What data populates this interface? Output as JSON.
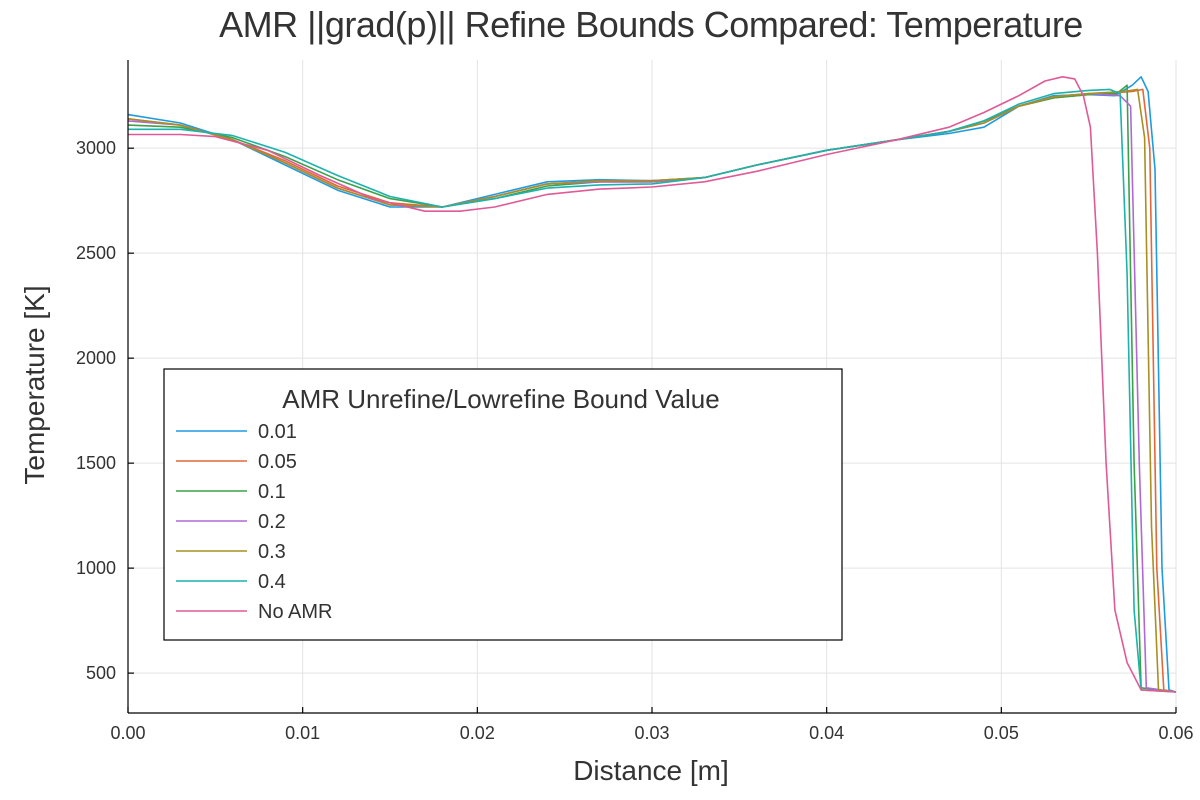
{
  "chart_data": {
    "type": "line",
    "title": "AMR ||grad(p)|| Refine Bounds Compared: Temperature",
    "xlabel": "Distance [m]",
    "ylabel": "Temperature [K]",
    "xlim": [
      0,
      0.06
    ],
    "ylim": [
      310,
      3420
    ],
    "xticks": [
      0.0,
      0.01,
      0.02,
      0.03,
      0.04,
      0.05,
      0.06
    ],
    "xtick_labels": [
      "0.00",
      "0.01",
      "0.02",
      "0.03",
      "0.04",
      "0.05",
      "0.06"
    ],
    "yticks": [
      500,
      1000,
      1500,
      2000,
      2500,
      3000
    ],
    "ytick_labels": [
      "500",
      "1000",
      "1500",
      "2000",
      "2500",
      "3000"
    ],
    "grid": true,
    "legend": {
      "title": "AMR Unrefine/Lowrefine Bound Value",
      "position": "center-left"
    },
    "series": [
      {
        "name": "0.01",
        "color": "#1f9be0",
        "points": [
          [
            0.0,
            3160
          ],
          [
            0.003,
            3120
          ],
          [
            0.006,
            3040
          ],
          [
            0.009,
            2920
          ],
          [
            0.012,
            2800
          ],
          [
            0.015,
            2720
          ],
          [
            0.018,
            2720
          ],
          [
            0.021,
            2780
          ],
          [
            0.024,
            2840
          ],
          [
            0.027,
            2850
          ],
          [
            0.03,
            2845
          ],
          [
            0.033,
            2860
          ],
          [
            0.036,
            2920
          ],
          [
            0.04,
            2990
          ],
          [
            0.044,
            3040
          ],
          [
            0.047,
            3070
          ],
          [
            0.049,
            3100
          ],
          [
            0.051,
            3200
          ],
          [
            0.053,
            3250
          ],
          [
            0.055,
            3255
          ],
          [
            0.0565,
            3250
          ],
          [
            0.0575,
            3300
          ],
          [
            0.058,
            3340
          ],
          [
            0.0584,
            3270
          ],
          [
            0.0588,
            2900
          ],
          [
            0.0592,
            1000
          ],
          [
            0.0596,
            420
          ],
          [
            0.06,
            410
          ]
        ]
      },
      {
        "name": "0.05",
        "color": "#e2683c",
        "points": [
          [
            0.0,
            3140
          ],
          [
            0.003,
            3110
          ],
          [
            0.006,
            3040
          ],
          [
            0.009,
            2940
          ],
          [
            0.012,
            2820
          ],
          [
            0.015,
            2740
          ],
          [
            0.018,
            2720
          ],
          [
            0.021,
            2770
          ],
          [
            0.024,
            2830
          ],
          [
            0.027,
            2840
          ],
          [
            0.03,
            2840
          ],
          [
            0.033,
            2860
          ],
          [
            0.036,
            2920
          ],
          [
            0.04,
            2990
          ],
          [
            0.044,
            3040
          ],
          [
            0.047,
            3080
          ],
          [
            0.049,
            3120
          ],
          [
            0.051,
            3200
          ],
          [
            0.053,
            3240
          ],
          [
            0.055,
            3255
          ],
          [
            0.0575,
            3270
          ],
          [
            0.0581,
            3280
          ],
          [
            0.0585,
            3000
          ],
          [
            0.0589,
            1000
          ],
          [
            0.0593,
            420
          ],
          [
            0.06,
            410
          ]
        ]
      },
      {
        "name": "0.1",
        "color": "#3ca24a",
        "points": [
          [
            0.0,
            3110
          ],
          [
            0.003,
            3100
          ],
          [
            0.006,
            3050
          ],
          [
            0.009,
            2960
          ],
          [
            0.012,
            2850
          ],
          [
            0.015,
            2760
          ],
          [
            0.018,
            2720
          ],
          [
            0.021,
            2760
          ],
          [
            0.024,
            2820
          ],
          [
            0.027,
            2840
          ],
          [
            0.03,
            2840
          ],
          [
            0.033,
            2860
          ],
          [
            0.036,
            2920
          ],
          [
            0.04,
            2990
          ],
          [
            0.044,
            3040
          ],
          [
            0.047,
            3080
          ],
          [
            0.049,
            3130
          ],
          [
            0.051,
            3200
          ],
          [
            0.053,
            3240
          ],
          [
            0.055,
            3255
          ],
          [
            0.0566,
            3260
          ],
          [
            0.0572,
            3300
          ],
          [
            0.0576,
            1500
          ],
          [
            0.058,
            430
          ],
          [
            0.06,
            410
          ]
        ]
      },
      {
        "name": "0.2",
        "color": "#b069d4",
        "points": [
          [
            0.0,
            3130
          ],
          [
            0.003,
            3110
          ],
          [
            0.006,
            3040
          ],
          [
            0.009,
            2930
          ],
          [
            0.012,
            2810
          ],
          [
            0.015,
            2730
          ],
          [
            0.018,
            2720
          ],
          [
            0.021,
            2770
          ],
          [
            0.024,
            2830
          ],
          [
            0.027,
            2840
          ],
          [
            0.03,
            2840
          ],
          [
            0.033,
            2860
          ],
          [
            0.036,
            2920
          ],
          [
            0.04,
            2990
          ],
          [
            0.044,
            3040
          ],
          [
            0.047,
            3080
          ],
          [
            0.049,
            3120
          ],
          [
            0.051,
            3200
          ],
          [
            0.053,
            3245
          ],
          [
            0.055,
            3260
          ],
          [
            0.0568,
            3250
          ],
          [
            0.0574,
            3200
          ],
          [
            0.0579,
            1500
          ],
          [
            0.0583,
            430
          ],
          [
            0.06,
            410
          ]
        ]
      },
      {
        "name": "0.3",
        "color": "#a98f22",
        "points": [
          [
            0.0,
            3140
          ],
          [
            0.003,
            3110
          ],
          [
            0.006,
            3040
          ],
          [
            0.009,
            2930
          ],
          [
            0.012,
            2810
          ],
          [
            0.015,
            2730
          ],
          [
            0.018,
            2720
          ],
          [
            0.021,
            2770
          ],
          [
            0.024,
            2830
          ],
          [
            0.027,
            2845
          ],
          [
            0.03,
            2845
          ],
          [
            0.033,
            2860
          ],
          [
            0.036,
            2920
          ],
          [
            0.04,
            2990
          ],
          [
            0.044,
            3040
          ],
          [
            0.047,
            3080
          ],
          [
            0.049,
            3120
          ],
          [
            0.051,
            3200
          ],
          [
            0.053,
            3245
          ],
          [
            0.055,
            3260
          ],
          [
            0.057,
            3270
          ],
          [
            0.0578,
            3280
          ],
          [
            0.0582,
            3050
          ],
          [
            0.0586,
            1200
          ],
          [
            0.059,
            420
          ],
          [
            0.06,
            410
          ]
        ]
      },
      {
        "name": "0.4",
        "color": "#1cb2ad",
        "points": [
          [
            0.0,
            3090
          ],
          [
            0.003,
            3090
          ],
          [
            0.006,
            3060
          ],
          [
            0.009,
            2980
          ],
          [
            0.012,
            2870
          ],
          [
            0.015,
            2770
          ],
          [
            0.018,
            2720
          ],
          [
            0.021,
            2760
          ],
          [
            0.024,
            2810
          ],
          [
            0.027,
            2825
          ],
          [
            0.03,
            2830
          ],
          [
            0.033,
            2860
          ],
          [
            0.036,
            2920
          ],
          [
            0.04,
            2990
          ],
          [
            0.044,
            3040
          ],
          [
            0.047,
            3080
          ],
          [
            0.049,
            3130
          ],
          [
            0.051,
            3210
          ],
          [
            0.053,
            3260
          ],
          [
            0.055,
            3275
          ],
          [
            0.0562,
            3280
          ],
          [
            0.0568,
            3260
          ],
          [
            0.0572,
            2400
          ],
          [
            0.0576,
            800
          ],
          [
            0.058,
            420
          ],
          [
            0.06,
            410
          ]
        ]
      },
      {
        "name": "No AMR",
        "color": "#e05a97",
        "points": [
          [
            0.0,
            3065
          ],
          [
            0.003,
            3065
          ],
          [
            0.005,
            3055
          ],
          [
            0.008,
            2990
          ],
          [
            0.011,
            2870
          ],
          [
            0.014,
            2760
          ],
          [
            0.017,
            2700
          ],
          [
            0.019,
            2700
          ],
          [
            0.021,
            2720
          ],
          [
            0.024,
            2780
          ],
          [
            0.027,
            2805
          ],
          [
            0.03,
            2815
          ],
          [
            0.033,
            2840
          ],
          [
            0.036,
            2890
          ],
          [
            0.04,
            2970
          ],
          [
            0.044,
            3040
          ],
          [
            0.047,
            3100
          ],
          [
            0.049,
            3170
          ],
          [
            0.051,
            3250
          ],
          [
            0.0525,
            3320
          ],
          [
            0.0535,
            3340
          ],
          [
            0.0542,
            3330
          ],
          [
            0.0547,
            3250
          ],
          [
            0.0551,
            3100
          ],
          [
            0.0555,
            2500
          ],
          [
            0.056,
            1500
          ],
          [
            0.0565,
            800
          ],
          [
            0.0572,
            550
          ],
          [
            0.058,
            420
          ],
          [
            0.06,
            410
          ]
        ]
      }
    ]
  }
}
